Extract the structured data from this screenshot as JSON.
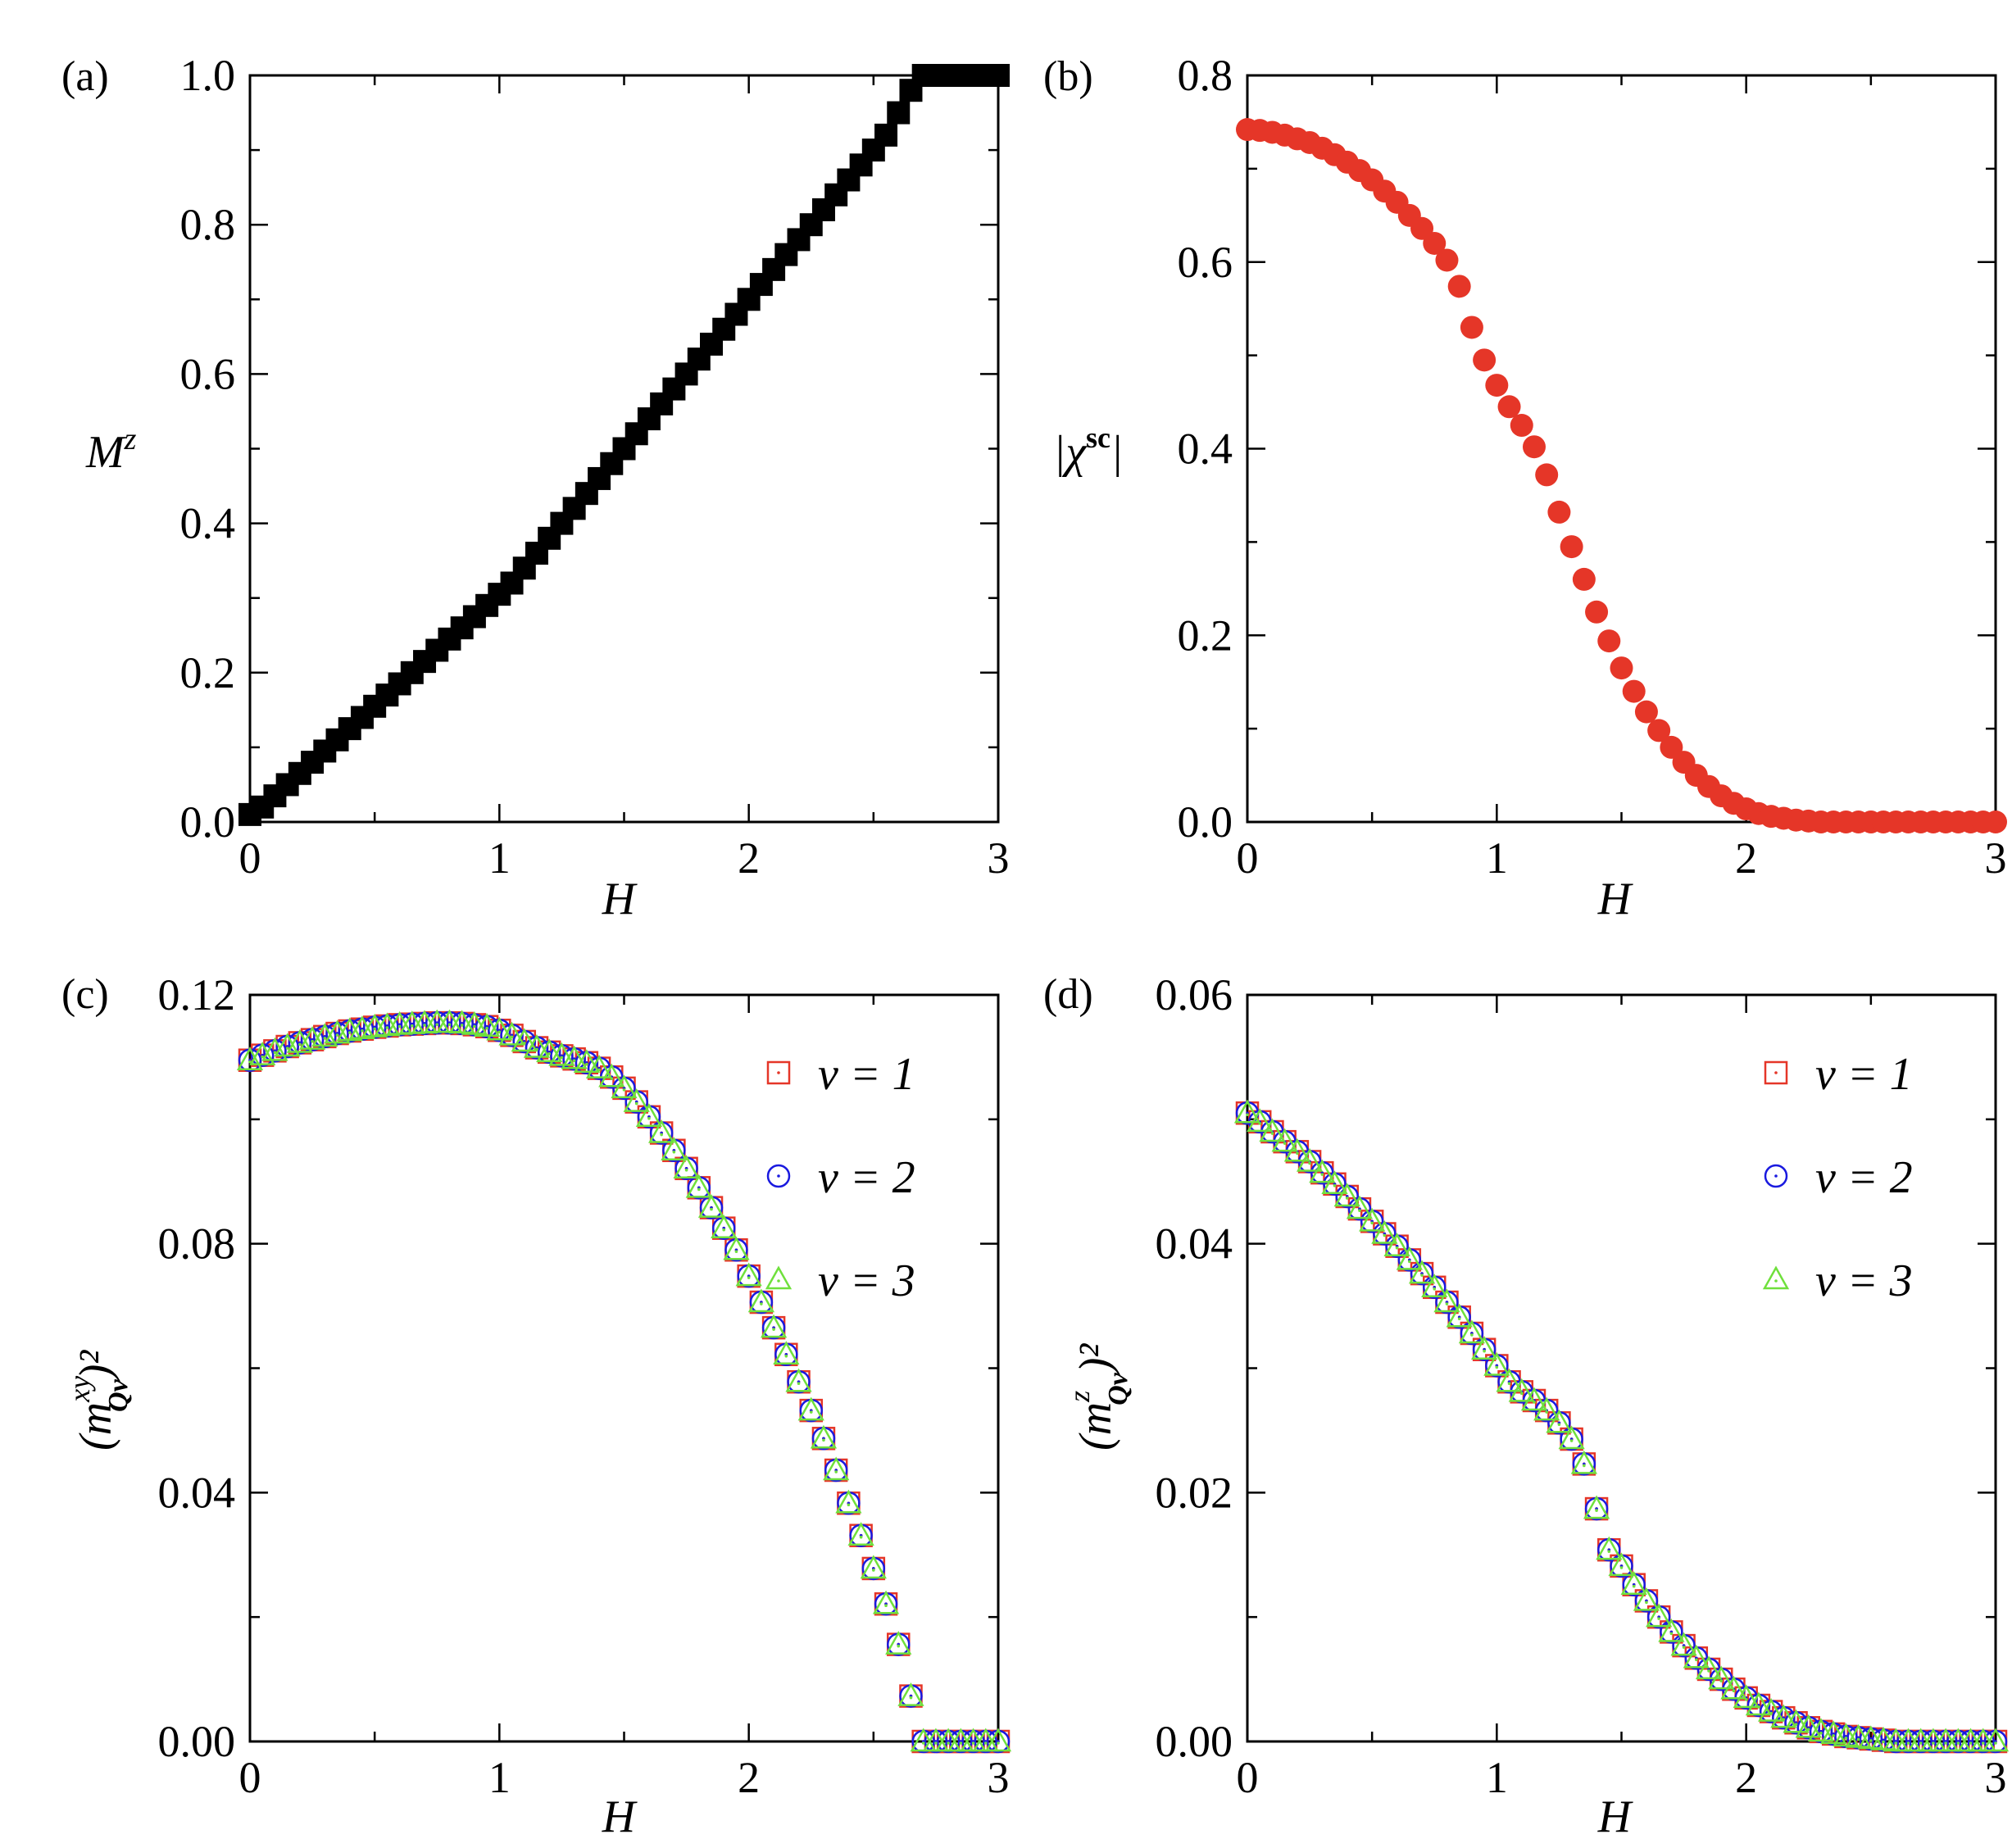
{
  "figure": {
    "colors": {
      "black": "#000000",
      "red": "#e53628",
      "blue": "#1a1adf",
      "green": "#6fe03c"
    }
  },
  "chart_data": [
    {
      "id": "a",
      "panel_label": "(a)",
      "type": "scatter",
      "marker": "filled-square",
      "xlabel": "H",
      "ylabel_base": "M",
      "ylabel_sup": "z",
      "xlim": [
        0,
        3
      ],
      "ylim": [
        0,
        1.0
      ],
      "xticks": [
        0,
        1,
        2,
        3
      ],
      "xtick_labels": [
        "0",
        "1",
        "2",
        "3"
      ],
      "yticks": [
        0,
        0.2,
        0.4,
        0.6,
        0.8,
        1.0
      ],
      "ytick_labels": [
        "0.0",
        "0.2",
        "0.4",
        "0.6",
        "0.8",
        "1.0"
      ],
      "series": [
        {
          "name": "M^z",
          "color": "#000000",
          "x": [
            0,
            0.05,
            0.1,
            0.15,
            0.2,
            0.25,
            0.3,
            0.35,
            0.4,
            0.45,
            0.5,
            0.55,
            0.6,
            0.65,
            0.7,
            0.75,
            0.8,
            0.85,
            0.9,
            0.95,
            1.0,
            1.05,
            1.1,
            1.15,
            1.2,
            1.25,
            1.3,
            1.35,
            1.4,
            1.45,
            1.5,
            1.55,
            1.6,
            1.65,
            1.7,
            1.75,
            1.8,
            1.85,
            1.9,
            1.95,
            2.0,
            2.05,
            2.1,
            2.15,
            2.2,
            2.25,
            2.3,
            2.35,
            2.4,
            2.45,
            2.5,
            2.55,
            2.6,
            2.65,
            2.7,
            2.75,
            2.8,
            2.85,
            2.9,
            2.95,
            3.0
          ],
          "y": [
            0.01,
            0.02,
            0.035,
            0.05,
            0.065,
            0.08,
            0.095,
            0.11,
            0.125,
            0.14,
            0.155,
            0.17,
            0.185,
            0.2,
            0.215,
            0.23,
            0.245,
            0.26,
            0.275,
            0.29,
            0.305,
            0.32,
            0.34,
            0.36,
            0.38,
            0.4,
            0.42,
            0.44,
            0.46,
            0.48,
            0.5,
            0.52,
            0.54,
            0.56,
            0.58,
            0.6,
            0.62,
            0.64,
            0.66,
            0.68,
            0.7,
            0.72,
            0.74,
            0.76,
            0.78,
            0.8,
            0.82,
            0.84,
            0.86,
            0.88,
            0.9,
            0.92,
            0.95,
            0.98,
            1.0,
            1.0,
            1.0,
            1.0,
            1.0,
            1.0,
            1.0
          ]
        }
      ]
    },
    {
      "id": "b",
      "panel_label": "(b)",
      "type": "scatter",
      "marker": "filled-circle",
      "xlabel": "H",
      "ylabel_base": "|χ",
      "ylabel_sup": "sc",
      "ylabel_tail": "|",
      "xlim": [
        0,
        3
      ],
      "ylim": [
        0,
        0.8
      ],
      "xticks": [
        0,
        1,
        2,
        3
      ],
      "xtick_labels": [
        "0",
        "1",
        "2",
        "3"
      ],
      "yticks": [
        0,
        0.2,
        0.4,
        0.6,
        0.8
      ],
      "ytick_labels": [
        "0.0",
        "0.2",
        "0.4",
        "0.6",
        "0.8"
      ],
      "series": [
        {
          "name": "|χ^sc|",
          "color": "#e53628",
          "x": [
            0,
            0.05,
            0.1,
            0.15,
            0.2,
            0.25,
            0.3,
            0.35,
            0.4,
            0.45,
            0.5,
            0.55,
            0.6,
            0.65,
            0.7,
            0.75,
            0.8,
            0.85,
            0.9,
            0.95,
            1.0,
            1.05,
            1.1,
            1.15,
            1.2,
            1.25,
            1.3,
            1.35,
            1.4,
            1.45,
            1.5,
            1.55,
            1.6,
            1.65,
            1.7,
            1.75,
            1.8,
            1.85,
            1.9,
            1.95,
            2.0,
            2.05,
            2.1,
            2.15,
            2.2,
            2.25,
            2.3,
            2.35,
            2.4,
            2.45,
            2.5,
            2.55,
            2.6,
            2.65,
            2.7,
            2.75,
            2.8,
            2.85,
            2.9,
            2.95,
            3.0
          ],
          "y": [
            0.742,
            0.741,
            0.739,
            0.736,
            0.732,
            0.728,
            0.722,
            0.715,
            0.707,
            0.698,
            0.688,
            0.676,
            0.664,
            0.65,
            0.636,
            0.62,
            0.602,
            0.574,
            0.53,
            0.495,
            0.468,
            0.445,
            0.425,
            0.402,
            0.372,
            0.332,
            0.295,
            0.26,
            0.225,
            0.194,
            0.165,
            0.14,
            0.118,
            0.098,
            0.08,
            0.064,
            0.05,
            0.038,
            0.028,
            0.02,
            0.014,
            0.009,
            0.006,
            0.004,
            0.002,
            0.001,
            0.0,
            0.0,
            0.0,
            0.0,
            0.0,
            0.0,
            0.0,
            0.0,
            0.0,
            0.0,
            0.0,
            0.0,
            0.0,
            0.0,
            0.0
          ]
        }
      ]
    },
    {
      "id": "c",
      "panel_label": "(c)",
      "type": "scatter",
      "marker": "open-markers",
      "xlabel": "H",
      "ylabel_text": "(m",
      "ylabel_sup": "xy",
      "ylabel_sub": "Qν",
      "ylabel_tail": ")²",
      "xlim": [
        0,
        3
      ],
      "ylim": [
        0,
        0.12
      ],
      "xticks": [
        0,
        1,
        2,
        3
      ],
      "xtick_labels": [
        "0",
        "1",
        "2",
        "3"
      ],
      "yticks": [
        0,
        0.04,
        0.08,
        0.12
      ],
      "ytick_labels": [
        "0.00",
        "0.04",
        "0.08",
        "0.12"
      ],
      "x": [
        0,
        0.05,
        0.1,
        0.15,
        0.2,
        0.25,
        0.3,
        0.35,
        0.4,
        0.45,
        0.5,
        0.55,
        0.6,
        0.65,
        0.7,
        0.75,
        0.8,
        0.85,
        0.9,
        0.95,
        1.0,
        1.05,
        1.1,
        1.15,
        1.2,
        1.25,
        1.3,
        1.35,
        1.4,
        1.45,
        1.5,
        1.55,
        1.6,
        1.65,
        1.7,
        1.75,
        1.8,
        1.85,
        1.9,
        1.95,
        2.0,
        2.05,
        2.1,
        2.15,
        2.2,
        2.25,
        2.3,
        2.35,
        2.4,
        2.45,
        2.5,
        2.55,
        2.6,
        2.65,
        2.7,
        2.75,
        2.8,
        2.85,
        2.9,
        2.95,
        3.0
      ],
      "legend": [
        "ν = 1",
        "ν = 2",
        "ν = 3"
      ],
      "series": [
        {
          "name": "ν = 1",
          "marker": "square",
          "color": "#e53628",
          "y": [
            0.1095,
            0.1103,
            0.111,
            0.1117,
            0.1123,
            0.1128,
            0.1133,
            0.1138,
            0.1142,
            0.1145,
            0.1148,
            0.115,
            0.1152,
            0.1153,
            0.1154,
            0.1155,
            0.1155,
            0.1154,
            0.1152,
            0.1149,
            0.1143,
            0.1135,
            0.1125,
            0.1115,
            0.1108,
            0.1102,
            0.1097,
            0.1091,
            0.1082,
            0.1068,
            0.105,
            0.1028,
            0.1004,
            0.0978,
            0.095,
            0.0921,
            0.089,
            0.0858,
            0.0825,
            0.079,
            0.0748,
            0.0706,
            0.0665,
            0.0622,
            0.0578,
            0.0532,
            0.0487,
            0.0436,
            0.0383,
            0.0331,
            0.0278,
            0.0221,
            0.0156,
            0.0073,
            0.0,
            0.0,
            0.0,
            0.0,
            0.0,
            0.0,
            0.0
          ]
        },
        {
          "name": "ν = 2",
          "marker": "circle",
          "color": "#1a1adf",
          "y": [
            0.1095,
            0.1103,
            0.111,
            0.1117,
            0.1123,
            0.1128,
            0.1133,
            0.1138,
            0.1142,
            0.1145,
            0.1148,
            0.115,
            0.1152,
            0.1153,
            0.1154,
            0.1155,
            0.1155,
            0.1154,
            0.1152,
            0.1149,
            0.1143,
            0.1135,
            0.1125,
            0.1115,
            0.1108,
            0.1102,
            0.1097,
            0.1091,
            0.1082,
            0.1068,
            0.105,
            0.1028,
            0.1004,
            0.0978,
            0.095,
            0.0921,
            0.089,
            0.0858,
            0.0825,
            0.079,
            0.0748,
            0.0706,
            0.0665,
            0.0622,
            0.0578,
            0.0532,
            0.0487,
            0.0436,
            0.0383,
            0.0331,
            0.0278,
            0.0221,
            0.0156,
            0.0073,
            0.0,
            0.0,
            0.0,
            0.0,
            0.0,
            0.0,
            0.0
          ]
        },
        {
          "name": "ν = 3",
          "marker": "triangle",
          "color": "#6fe03c",
          "y": [
            0.1095,
            0.1103,
            0.111,
            0.1117,
            0.1123,
            0.1128,
            0.1133,
            0.1138,
            0.1142,
            0.1145,
            0.1148,
            0.115,
            0.1152,
            0.1153,
            0.1154,
            0.1155,
            0.1155,
            0.1154,
            0.1152,
            0.1149,
            0.1143,
            0.1135,
            0.1125,
            0.1115,
            0.1108,
            0.1102,
            0.1097,
            0.1091,
            0.1082,
            0.1068,
            0.105,
            0.1028,
            0.1004,
            0.0978,
            0.095,
            0.0921,
            0.089,
            0.0858,
            0.0825,
            0.079,
            0.0748,
            0.0706,
            0.0665,
            0.0622,
            0.0578,
            0.0532,
            0.0487,
            0.0436,
            0.0383,
            0.0331,
            0.0278,
            0.0221,
            0.0156,
            0.0073,
            0.0,
            0.0,
            0.0,
            0.0,
            0.0,
            0.0,
            0.0
          ]
        }
      ]
    },
    {
      "id": "d",
      "panel_label": "(d)",
      "type": "scatter",
      "marker": "open-markers",
      "xlabel": "H",
      "ylabel_text": "(m",
      "ylabel_sup": "z",
      "ylabel_sub": "Qν",
      "ylabel_tail": ")²",
      "xlim": [
        0,
        3
      ],
      "ylim": [
        0,
        0.06
      ],
      "xticks": [
        0,
        1,
        2,
        3
      ],
      "xtick_labels": [
        "0",
        "1",
        "2",
        "3"
      ],
      "yticks": [
        0,
        0.02,
        0.04,
        0.06
      ],
      "ytick_labels": [
        "0.00",
        "0.02",
        "0.04",
        "0.06"
      ],
      "x": [
        0,
        0.05,
        0.1,
        0.15,
        0.2,
        0.25,
        0.3,
        0.35,
        0.4,
        0.45,
        0.5,
        0.55,
        0.6,
        0.65,
        0.7,
        0.75,
        0.8,
        0.85,
        0.9,
        0.95,
        1.0,
        1.05,
        1.1,
        1.15,
        1.2,
        1.25,
        1.3,
        1.35,
        1.4,
        1.45,
        1.5,
        1.55,
        1.6,
        1.65,
        1.7,
        1.75,
        1.8,
        1.85,
        1.9,
        1.95,
        2.0,
        2.05,
        2.1,
        2.15,
        2.2,
        2.25,
        2.3,
        2.35,
        2.4,
        2.45,
        2.5,
        2.55,
        2.6,
        2.65,
        2.7,
        2.75,
        2.8,
        2.85,
        2.9,
        2.95,
        3.0
      ],
      "legend": [
        "ν = 1",
        "ν = 2",
        "ν = 3"
      ],
      "series": [
        {
          "name": "ν = 1",
          "marker": "square",
          "color": "#e53628",
          "y": [
            0.0505,
            0.0498,
            0.049,
            0.0482,
            0.0474,
            0.0466,
            0.0457,
            0.0448,
            0.0438,
            0.0428,
            0.0418,
            0.0408,
            0.0398,
            0.0387,
            0.0376,
            0.0365,
            0.0353,
            0.0341,
            0.0328,
            0.0315,
            0.0302,
            0.0289,
            0.0281,
            0.0274,
            0.0266,
            0.0256,
            0.0243,
            0.0223,
            0.0187,
            0.0154,
            0.0141,
            0.0126,
            0.0113,
            0.01,
            0.0088,
            0.0077,
            0.0067,
            0.0058,
            0.005,
            0.0042,
            0.0035,
            0.0029,
            0.0024,
            0.0019,
            0.0015,
            0.0011,
            0.0008,
            0.0006,
            0.0004,
            0.0003,
            0.0002,
            0.0001,
            0.0,
            0.0,
            0.0,
            0.0,
            0.0,
            0.0,
            0.0,
            0.0,
            0.0
          ]
        },
        {
          "name": "ν = 2",
          "marker": "circle",
          "color": "#1a1adf",
          "y": [
            0.0505,
            0.0498,
            0.049,
            0.0482,
            0.0474,
            0.0466,
            0.0457,
            0.0448,
            0.0438,
            0.0428,
            0.0418,
            0.0408,
            0.0398,
            0.0387,
            0.0376,
            0.0365,
            0.0353,
            0.0341,
            0.0328,
            0.0315,
            0.0302,
            0.0289,
            0.0281,
            0.0274,
            0.0266,
            0.0256,
            0.0243,
            0.0223,
            0.0187,
            0.0154,
            0.0141,
            0.0126,
            0.0113,
            0.01,
            0.0088,
            0.0077,
            0.0067,
            0.0058,
            0.005,
            0.0042,
            0.0035,
            0.0029,
            0.0024,
            0.0019,
            0.0015,
            0.0011,
            0.0008,
            0.0006,
            0.0004,
            0.0003,
            0.0002,
            0.0001,
            0.0,
            0.0,
            0.0,
            0.0,
            0.0,
            0.0,
            0.0,
            0.0,
            0.0
          ]
        },
        {
          "name": "ν = 3",
          "marker": "triangle",
          "color": "#6fe03c",
          "y": [
            0.0505,
            0.0498,
            0.049,
            0.0482,
            0.0474,
            0.0466,
            0.0457,
            0.0448,
            0.0438,
            0.0428,
            0.0418,
            0.0408,
            0.0398,
            0.0387,
            0.0376,
            0.0365,
            0.0353,
            0.0341,
            0.0328,
            0.0315,
            0.0302,
            0.0289,
            0.0281,
            0.0274,
            0.0266,
            0.0256,
            0.0243,
            0.0223,
            0.0187,
            0.0154,
            0.0141,
            0.0126,
            0.0113,
            0.01,
            0.0088,
            0.0077,
            0.0067,
            0.0058,
            0.005,
            0.0042,
            0.0035,
            0.0029,
            0.0024,
            0.0019,
            0.0015,
            0.0011,
            0.0008,
            0.0006,
            0.0004,
            0.0003,
            0.0002,
            0.0001,
            0.0,
            0.0,
            0.0,
            0.0,
            0.0,
            0.0,
            0.0,
            0.0,
            0.0
          ]
        }
      ]
    }
  ]
}
